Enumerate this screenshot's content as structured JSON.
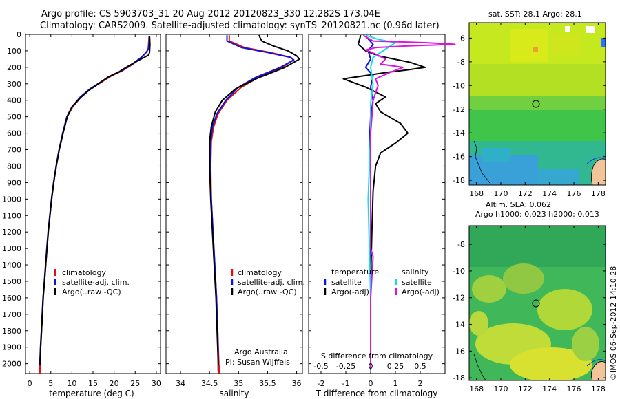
{
  "title": {
    "line1": "Argo profile: CS 5903703_31 20-Aug-2012 20120823_330 12.282S 173.04E",
    "line2": "Climatology: CARS2009. Satellite-adjusted climatology: synTS_20120821.nc (0.96d later)"
  },
  "depth_ticks": [
    0,
    100,
    200,
    300,
    400,
    500,
    600,
    700,
    800,
    900,
    1000,
    1100,
    1200,
    1300,
    1400,
    1500,
    1600,
    1700,
    1800,
    1900,
    2000
  ],
  "colors": {
    "climatology": "#e01010",
    "satellite": "#1010e0",
    "argo": "#000000",
    "sal_satellite": "#10e0e0",
    "sal_argo": "#e010e0"
  },
  "chart_data": [
    {
      "type": "line",
      "xlabel": "temperature (deg C)",
      "xlim": [
        -1,
        31
      ],
      "ylim": [
        2060,
        0
      ],
      "xticks": [
        0,
        5,
        10,
        15,
        20,
        25,
        30
      ],
      "legend": {
        "placement": "middle-left",
        "entries": [
          "climatology",
          "satellite-adj. clim.",
          "Argo(..raw -QC)"
        ]
      },
      "series": [
        {
          "name": "climatology",
          "color": "#e01010",
          "values": [
            [
              28.3,
              10
            ],
            [
              28.2,
              50
            ],
            [
              28.1,
              90
            ],
            [
              27.6,
              110
            ],
            [
              26.5,
              140
            ],
            [
              24.5,
              180
            ],
            [
              22,
              220
            ],
            [
              19.5,
              250
            ],
            [
              17,
              290
            ],
            [
              14.5,
              330
            ],
            [
              12.2,
              380
            ],
            [
              10.2,
              440
            ],
            [
              8.9,
              500
            ],
            [
              7.9,
              600
            ],
            [
              7,
              700
            ],
            [
              6.3,
              800
            ],
            [
              5.7,
              900
            ],
            [
              5.2,
              1000
            ],
            [
              4.8,
              1100
            ],
            [
              4.4,
              1200
            ],
            [
              4.1,
              1300
            ],
            [
              3.8,
              1400
            ],
            [
              3.5,
              1500
            ],
            [
              3.2,
              1600
            ],
            [
              3.0,
              1700
            ],
            [
              2.8,
              1800
            ],
            [
              2.6,
              1900
            ],
            [
              2.45,
              2000
            ],
            [
              2.4,
              2050
            ]
          ]
        },
        {
          "name": "satellite-adj. clim.",
          "color": "#1010e0",
          "values": [
            [
              28.3,
              10
            ],
            [
              28.3,
              50
            ],
            [
              28.1,
              90
            ],
            [
              27.6,
              110
            ],
            [
              26.4,
              140
            ],
            [
              24.3,
              180
            ],
            [
              21.8,
              220
            ],
            [
              19.3,
              250
            ],
            [
              16.8,
              290
            ],
            [
              14.3,
              330
            ],
            [
              12,
              380
            ],
            [
              10,
              440
            ],
            [
              8.8,
              500
            ],
            [
              7.8,
              600
            ],
            [
              6.95,
              700
            ],
            [
              6.25,
              800
            ],
            [
              5.65,
              900
            ],
            [
              5.15,
              1000
            ],
            [
              4.75,
              1100
            ],
            [
              4.35,
              1200
            ],
            [
              4.05,
              1300
            ],
            [
              3.75,
              1400
            ],
            [
              3.45,
              1500
            ],
            [
              3.15,
              1600
            ],
            [
              2.95,
              1700
            ],
            [
              2.75,
              1800
            ],
            [
              2.55,
              1900
            ],
            [
              2.4,
              2000
            ],
            [
              2.35,
              2050
            ]
          ]
        },
        {
          "name": "Argo(..raw -QC)",
          "color": "#000000",
          "values": [
            [
              28.4,
              10
            ],
            [
              28.5,
              60
            ],
            [
              28.4,
              110
            ],
            [
              28.2,
              125
            ],
            [
              27.5,
              135
            ],
            [
              26,
              155
            ],
            [
              23.5,
              190
            ],
            [
              21,
              230
            ],
            [
              18.5,
              260
            ],
            [
              16.3,
              300
            ],
            [
              14,
              340
            ],
            [
              11.8,
              390
            ],
            [
              10,
              440
            ],
            [
              8.9,
              500
            ],
            [
              7.9,
              600
            ],
            [
              7,
              700
            ],
            [
              6.3,
              800
            ],
            [
              5.7,
              900
            ],
            [
              5.2,
              1000
            ],
            [
              4.8,
              1100
            ],
            [
              4.4,
              1200
            ],
            [
              4.1,
              1300
            ],
            [
              3.8,
              1400
            ],
            [
              3.5,
              1500
            ],
            [
              3.2,
              1600
            ],
            [
              3.0,
              1700
            ],
            [
              2.8,
              1800
            ],
            [
              2.6,
              1900
            ],
            [
              2.45,
              2000
            ],
            [
              2.4,
              2040
            ]
          ]
        }
      ]
    },
    {
      "type": "line",
      "xlabel": "salinity",
      "xlim": [
        33.75,
        36.1
      ],
      "ylim": [
        2060,
        0
      ],
      "xticks": [
        34,
        34.5,
        35,
        35.5,
        36
      ],
      "legend": {
        "placement": "middle-right",
        "entries": [
          "climatology",
          "satellite-adj. clim.",
          "Argo(..raw -QC)"
        ]
      },
      "annotation": [
        "Argo Australia",
        "PI: Susan Wijffels"
      ],
      "series": [
        {
          "name": "climatology",
          "color": "#e01010",
          "values": [
            [
              34.84,
              5
            ],
            [
              34.84,
              40
            ],
            [
              35.1,
              80
            ],
            [
              35.55,
              110
            ],
            [
              35.9,
              140
            ],
            [
              35.95,
              155
            ],
            [
              35.75,
              200
            ],
            [
              35.35,
              260
            ],
            [
              35.05,
              320
            ],
            [
              34.8,
              400
            ],
            [
              34.65,
              480
            ],
            [
              34.57,
              560
            ],
            [
              34.53,
              650
            ],
            [
              34.52,
              800
            ],
            [
              34.53,
              1000
            ],
            [
              34.56,
              1200
            ],
            [
              34.59,
              1400
            ],
            [
              34.62,
              1600
            ],
            [
              34.64,
              1800
            ],
            [
              34.66,
              2000
            ],
            [
              34.66,
              2050
            ]
          ]
        },
        {
          "name": "satellite-adj. clim.",
          "color": "#1010e0",
          "values": [
            [
              34.8,
              5
            ],
            [
              34.8,
              40
            ],
            [
              35.05,
              80
            ],
            [
              35.5,
              110
            ],
            [
              35.9,
              140
            ],
            [
              35.95,
              155
            ],
            [
              35.72,
              200
            ],
            [
              35.3,
              260
            ],
            [
              35,
              320
            ],
            [
              34.78,
              400
            ],
            [
              34.63,
              480
            ],
            [
              34.55,
              560
            ],
            [
              34.52,
              650
            ],
            [
              34.51,
              800
            ],
            [
              34.53,
              1000
            ],
            [
              34.56,
              1200
            ],
            [
              34.59,
              1400
            ],
            [
              34.62,
              1600
            ],
            [
              34.64,
              1800
            ],
            [
              34.65,
              2000
            ],
            [
              34.65,
              2050
            ]
          ]
        },
        {
          "name": "Argo(..raw -QC)",
          "color": "#000000",
          "values": [
            [
              35.35,
              5
            ],
            [
              35.4,
              40
            ],
            [
              35.6,
              70
            ],
            [
              35.85,
              100
            ],
            [
              36.0,
              130
            ],
            [
              36.05,
              150
            ],
            [
              35.8,
              200
            ],
            [
              35.3,
              270
            ],
            [
              34.95,
              330
            ],
            [
              34.72,
              400
            ],
            [
              34.6,
              470
            ],
            [
              34.53,
              560
            ],
            [
              34.5,
              650
            ],
            [
              34.5,
              800
            ],
            [
              34.52,
              1000
            ],
            [
              34.55,
              1200
            ],
            [
              34.58,
              1400
            ],
            [
              34.61,
              1600
            ],
            [
              34.63,
              1800
            ],
            [
              34.65,
              2000
            ],
            [
              34.65,
              2040
            ]
          ]
        }
      ]
    },
    {
      "type": "line",
      "xlabel": "T difference from climatology",
      "xlabel_top": "S difference from climatology",
      "xlim": [
        -2.5,
        3
      ],
      "ylim": [
        2060,
        0
      ],
      "xticks": [
        -2,
        -1,
        0,
        1,
        2
      ],
      "xticks_top": [
        [
          "-0.5",
          -2
        ],
        [
          "-0.25",
          -1
        ],
        [
          "0",
          0
        ],
        [
          "0.25",
          1
        ],
        [
          "0.5",
          2
        ]
      ],
      "legend": {
        "placement": "lower-middle",
        "headers": [
          "temperature",
          "salinity"
        ],
        "entries": [
          "satellite",
          "Argo(-adj)",
          "satellite",
          "Argo(-adj)"
        ]
      },
      "series": [
        {
          "name": "temperature satellite",
          "color": "#1010e0",
          "values": [
            [
              -0.2,
              10
            ],
            [
              0.1,
              60
            ],
            [
              -0.1,
              100
            ],
            [
              0.0,
              150
            ],
            [
              -0.2,
              200
            ],
            [
              0.1,
              250
            ],
            [
              0.0,
              320
            ],
            [
              0.1,
              400
            ],
            [
              0.0,
              500
            ],
            [
              -0.05,
              650
            ],
            [
              0.0,
              800
            ],
            [
              0.0,
              1200
            ],
            [
              0.0,
              1600
            ],
            [
              0.0,
              2000
            ],
            [
              0.0,
              2050
            ]
          ]
        },
        {
          "name": "temperature Argo(-adj)",
          "color": "#000000",
          "values": [
            [
              -0.4,
              5
            ],
            [
              -0.5,
              60
            ],
            [
              -0.2,
              100
            ],
            [
              0.3,
              130
            ],
            [
              1.6,
              170
            ],
            [
              2.2,
              200
            ],
            [
              1.5,
              215
            ],
            [
              0.7,
              230
            ],
            [
              -1.1,
              270
            ],
            [
              -0.2,
              320
            ],
            [
              0.6,
              380
            ],
            [
              0.2,
              420
            ],
            [
              0.4,
              470
            ],
            [
              1.2,
              540
            ],
            [
              1.5,
              600
            ],
            [
              1.0,
              660
            ],
            [
              0.4,
              720
            ],
            [
              0.2,
              800
            ],
            [
              0.1,
              950
            ],
            [
              0.05,
              1200
            ],
            [
              0.0,
              1500
            ],
            [
              0.0,
              2040
            ]
          ]
        },
        {
          "name": "salinity satellite",
          "color": "#10e0e0",
          "values": [
            [
              -0.2,
              5
            ],
            [
              0.3,
              30
            ],
            [
              1.0,
              50
            ],
            [
              0.6,
              90
            ],
            [
              0.1,
              140
            ],
            [
              0.0,
              200
            ],
            [
              0.1,
              300
            ],
            [
              0.0,
              420
            ],
            [
              0.0,
              600
            ],
            [
              -0.05,
              800
            ],
            [
              -0.1,
              1000
            ],
            [
              -0.05,
              1300
            ],
            [
              0.0,
              1600
            ],
            [
              0.0,
              2050
            ]
          ]
        },
        {
          "name": "salinity Argo(-adj)",
          "color": "#e010e0",
          "values": [
            [
              -0.3,
              5
            ],
            [
              0.1,
              40
            ],
            [
              2.2,
              50
            ],
            [
              3.4,
              60
            ],
            [
              1.5,
              70
            ],
            [
              0.2,
              80
            ],
            [
              -0.2,
              95
            ],
            [
              0.2,
              120
            ],
            [
              0.6,
              150
            ],
            [
              0.4,
              180
            ],
            [
              1.3,
              200
            ],
            [
              0.8,
              230
            ],
            [
              0.2,
              270
            ],
            [
              0.3,
              310
            ],
            [
              0.1,
              400
            ],
            [
              0.0,
              600
            ],
            [
              0.0,
              1000
            ],
            [
              0.0,
              1300
            ],
            [
              0.1,
              1350
            ],
            [
              0.0,
              1600
            ],
            [
              0.0,
              2040
            ]
          ]
        }
      ]
    }
  ],
  "maps": [
    {
      "title": "sat. SST: 28.1 Argo: 28.1",
      "lon_ticks": [
        168,
        170,
        172,
        174,
        176,
        178
      ],
      "lat_ticks": [
        -6,
        -8,
        -10,
        -12,
        -14,
        -16,
        -18
      ],
      "lon_range": [
        167.4,
        178.6
      ],
      "lat_range": [
        -18.4,
        -4.7
      ],
      "profile_marker": [
        173.04,
        -12.28
      ]
    },
    {
      "title": "Altim. SLA: 0.062",
      "subtitle": "Argo h1000: 0.023 h2000: 0.013",
      "lon_ticks": [
        168,
        170,
        172,
        174,
        176,
        178
      ],
      "lat_ticks": [
        -8,
        -10,
        -12,
        -14,
        -16,
        -18
      ],
      "lon_range": [
        167.4,
        178.6
      ],
      "lat_range": [
        -18.2,
        -6.6
      ],
      "profile_marker": [
        173.04,
        -12.28
      ]
    }
  ],
  "credit": "©IMOS 06-Sep-2012 14:10:28"
}
